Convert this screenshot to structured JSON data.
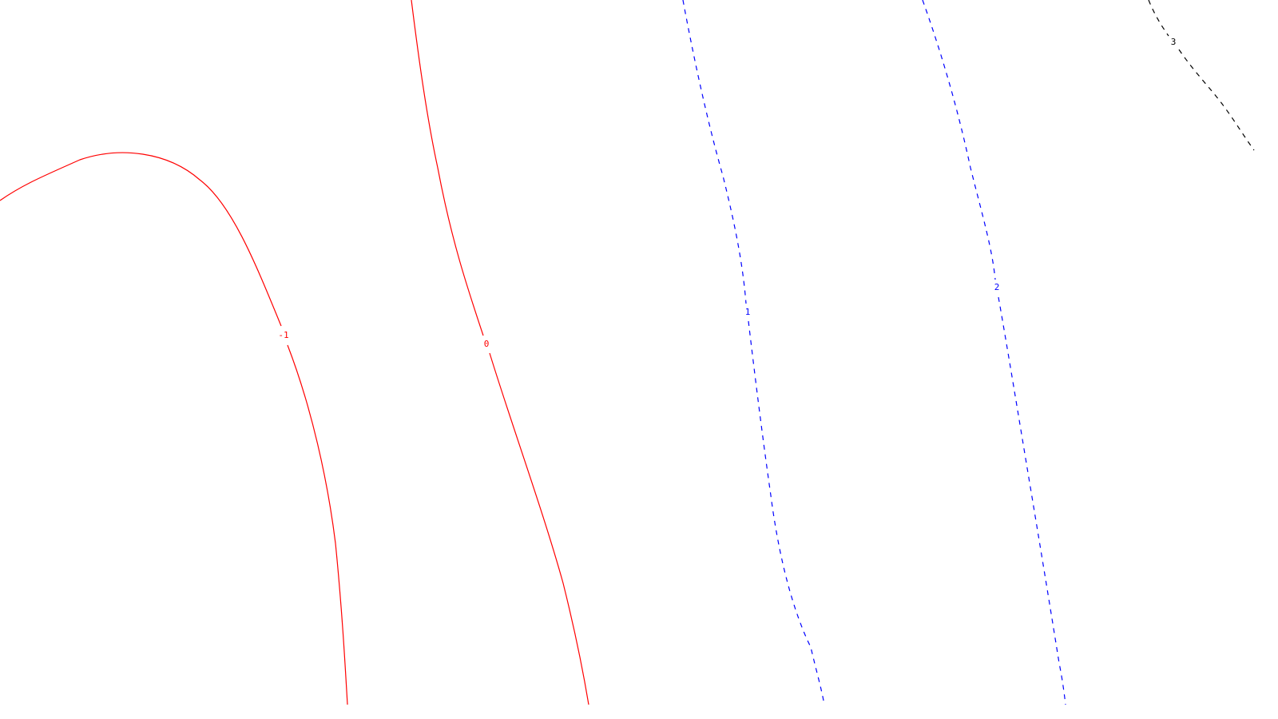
{
  "chart_data": {
    "type": "contour",
    "title": "",
    "xlabel": "",
    "ylabel": "",
    "grid": false,
    "legend": "none",
    "colors": {
      "negative_or_zero": "#ff0000",
      "positive": "#0000ff",
      "label_high": "#000000"
    },
    "levels": [
      {
        "value": -1,
        "label": "-1",
        "style": "solid",
        "color": "#ff0000"
      },
      {
        "value": 0,
        "label": "0",
        "style": "solid",
        "color": "#ff0000"
      },
      {
        "value": 1,
        "label": "1",
        "style": "dashed",
        "color": "#0000ff"
      },
      {
        "value": 2,
        "label": "2",
        "style": "dashed",
        "color": "#0000ff"
      },
      {
        "value": 3,
        "label": "3",
        "style": "dashed",
        "color": "#000000"
      }
    ]
  }
}
